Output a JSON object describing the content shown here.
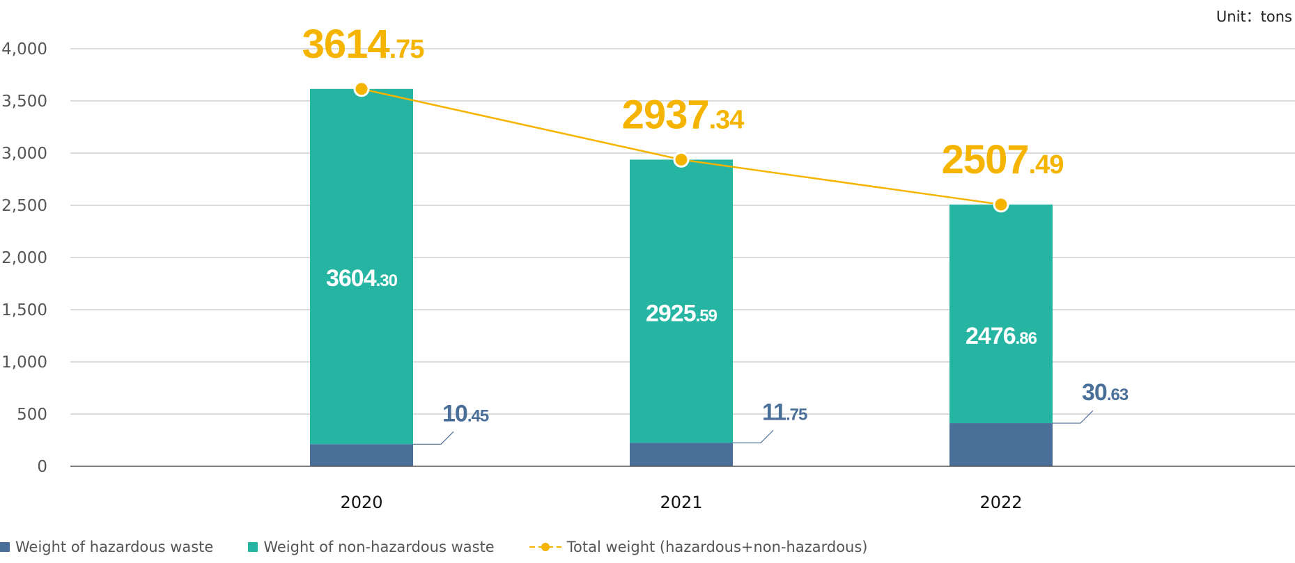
{
  "chart_data": {
    "type": "bar",
    "stacked": true,
    "unit_label": "Unit：tons",
    "categories": [
      "2020",
      "2021",
      "2022"
    ],
    "ylim": [
      0,
      4000
    ],
    "yticks": [
      "0",
      "500",
      "1,000",
      "1,500",
      "2,000",
      "2,500",
      "3,000",
      "3,500",
      "4,000"
    ],
    "ytick_values": [
      0,
      500,
      1000,
      1500,
      2000,
      2500,
      3000,
      3500,
      4000
    ],
    "grid": true,
    "legend_position": "bottom-left",
    "series": [
      {
        "name": "Weight of hazardous waste",
        "type": "bar",
        "color": "#4a6f99",
        "values": [
          10.45,
          11.75,
          30.63
        ],
        "labels_int": [
          "10",
          "11",
          "30"
        ],
        "labels_dec": [
          ".45",
          ".75",
          ".63"
        ]
      },
      {
        "name": "Weight of non-hazardous waste",
        "type": "bar",
        "color": "#26b5a3",
        "values": [
          3604.3,
          2925.59,
          2476.86
        ],
        "labels_int": [
          "3604",
          "2925",
          "2476"
        ],
        "labels_dec": [
          ".30",
          ".59",
          ".86"
        ]
      },
      {
        "name": "Total weight (hazardous+non-hazardous)",
        "type": "line",
        "color": "#f5b400",
        "values": [
          3614.75,
          2937.34,
          2507.49
        ],
        "labels_int": [
          "3614",
          "2937",
          "2507"
        ],
        "labels_dec": [
          ".75",
          ".34",
          ".49"
        ]
      }
    ]
  }
}
